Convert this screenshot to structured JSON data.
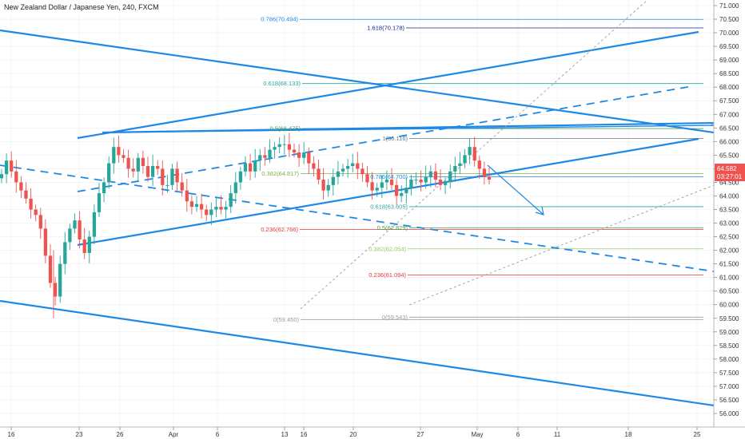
{
  "title": "New Zealand Dollar / Japanese Yen, 240, FXCM",
  "colors": {
    "up": "#26a69a",
    "down": "#ef5350",
    "trend": "#1e88e5",
    "grid": "#e9eef3"
  },
  "chart_data": {
    "type": "candlestick",
    "title": "New Zealand Dollar / Japanese Yen, 240, FXCM",
    "ylim": [
      55.8,
      71.25
    ],
    "y_ticks": [
      "71.000",
      "70.500",
      "70.000",
      "69.500",
      "69.000",
      "68.500",
      "68.000",
      "67.500",
      "67.000",
      "66.500",
      "66.000",
      "65.500",
      "65.000",
      "64.500",
      "64.000",
      "63.500",
      "63.000",
      "62.500",
      "62.000",
      "61.500",
      "61.000",
      "60.500",
      "60.000",
      "59.500",
      "59.000",
      "58.500",
      "58.000",
      "57.500",
      "57.000",
      "56.500",
      "56.000"
    ],
    "x_ticks": [
      "16",
      "23",
      "26",
      "Apr",
      "6",
      "13",
      "16",
      "20",
      "27",
      "May",
      "6",
      "11",
      "18",
      "25"
    ],
    "price_label": "64.582",
    "time_label": "03:27:01",
    "close_series": [
      64.8,
      65.3,
      64.9,
      64.5,
      64.2,
      63.9,
      63.5,
      63.3,
      62.8,
      61.8,
      60.8,
      60.3,
      61.5,
      62.3,
      62.8,
      63.1,
      62.4,
      61.9,
      62.5,
      63.4,
      64.1,
      64.5,
      65.2,
      65.8,
      65.5,
      65.4,
      65.0,
      64.9,
      65.4,
      65.1,
      64.7,
      65.1,
      65.0,
      64.4,
      64.4,
      65.0,
      64.5,
      64.2,
      63.8,
      63.6,
      63.7,
      63.5,
      63.3,
      63.5,
      63.6,
      63.5,
      63.6,
      64.1,
      64.5,
      64.9,
      65.2,
      64.9,
      65.3,
      65.5,
      65.4,
      65.7,
      65.8,
      65.9,
      65.9,
      65.7,
      65.6,
      65.4,
      65.6,
      65.2,
      65.0,
      64.6,
      64.2,
      64.4,
      64.7,
      64.9,
      65.0,
      65.1,
      65.2,
      65.0,
      64.8,
      64.5,
      64.2,
      64.3,
      64.5,
      64.6,
      64.4,
      64.0,
      64.1,
      64.3,
      64.6,
      64.6,
      64.5,
      64.7,
      64.9,
      64.6,
      64.4,
      64.5,
      64.9,
      65.1,
      65.2,
      65.5,
      65.8,
      65.3,
      65.0,
      64.7,
      64.6
    ],
    "fib_labels": [
      {
        "text": "0.786(70.494)",
        "value": 70.494,
        "color": "#1e88e5"
      },
      {
        "text": "1.618(70.178)",
        "value": 70.178,
        "color": "#1a237e"
      },
      {
        "text": "0.618(68.133)",
        "value": 68.133,
        "color": "#26a69a"
      },
      {
        "text": "0.5(66.475)",
        "value": 66.475,
        "color": "#43a047"
      },
      {
        "text": "1(66.116)",
        "value": 66.116,
        "color": "#607d8b"
      },
      {
        "text": "0.382(64.817)",
        "value": 64.817,
        "color": "#7cb342"
      },
      {
        "text": "0.786(64.700)",
        "value": 64.7,
        "color": "#1e88e5"
      },
      {
        "text": "0.618(63.605)",
        "value": 63.605,
        "color": "#26a69a"
      },
      {
        "text": "0.5(62.829)",
        "value": 62.829,
        "color": "#43a047"
      },
      {
        "text": "0.236(62.766)",
        "value": 62.766,
        "color": "#e53935"
      },
      {
        "text": "0.382(62.054)",
        "value": 62.054,
        "color": "#9ccc65"
      },
      {
        "text": "0.236(61.094)",
        "value": 61.094,
        "color": "#e53935"
      },
      {
        "text": "0(59.450)",
        "value": 59.45,
        "color": "#9e9e9e"
      },
      {
        "text": "0(59.543)",
        "value": 59.543,
        "color": "#9e9e9e"
      }
    ]
  }
}
